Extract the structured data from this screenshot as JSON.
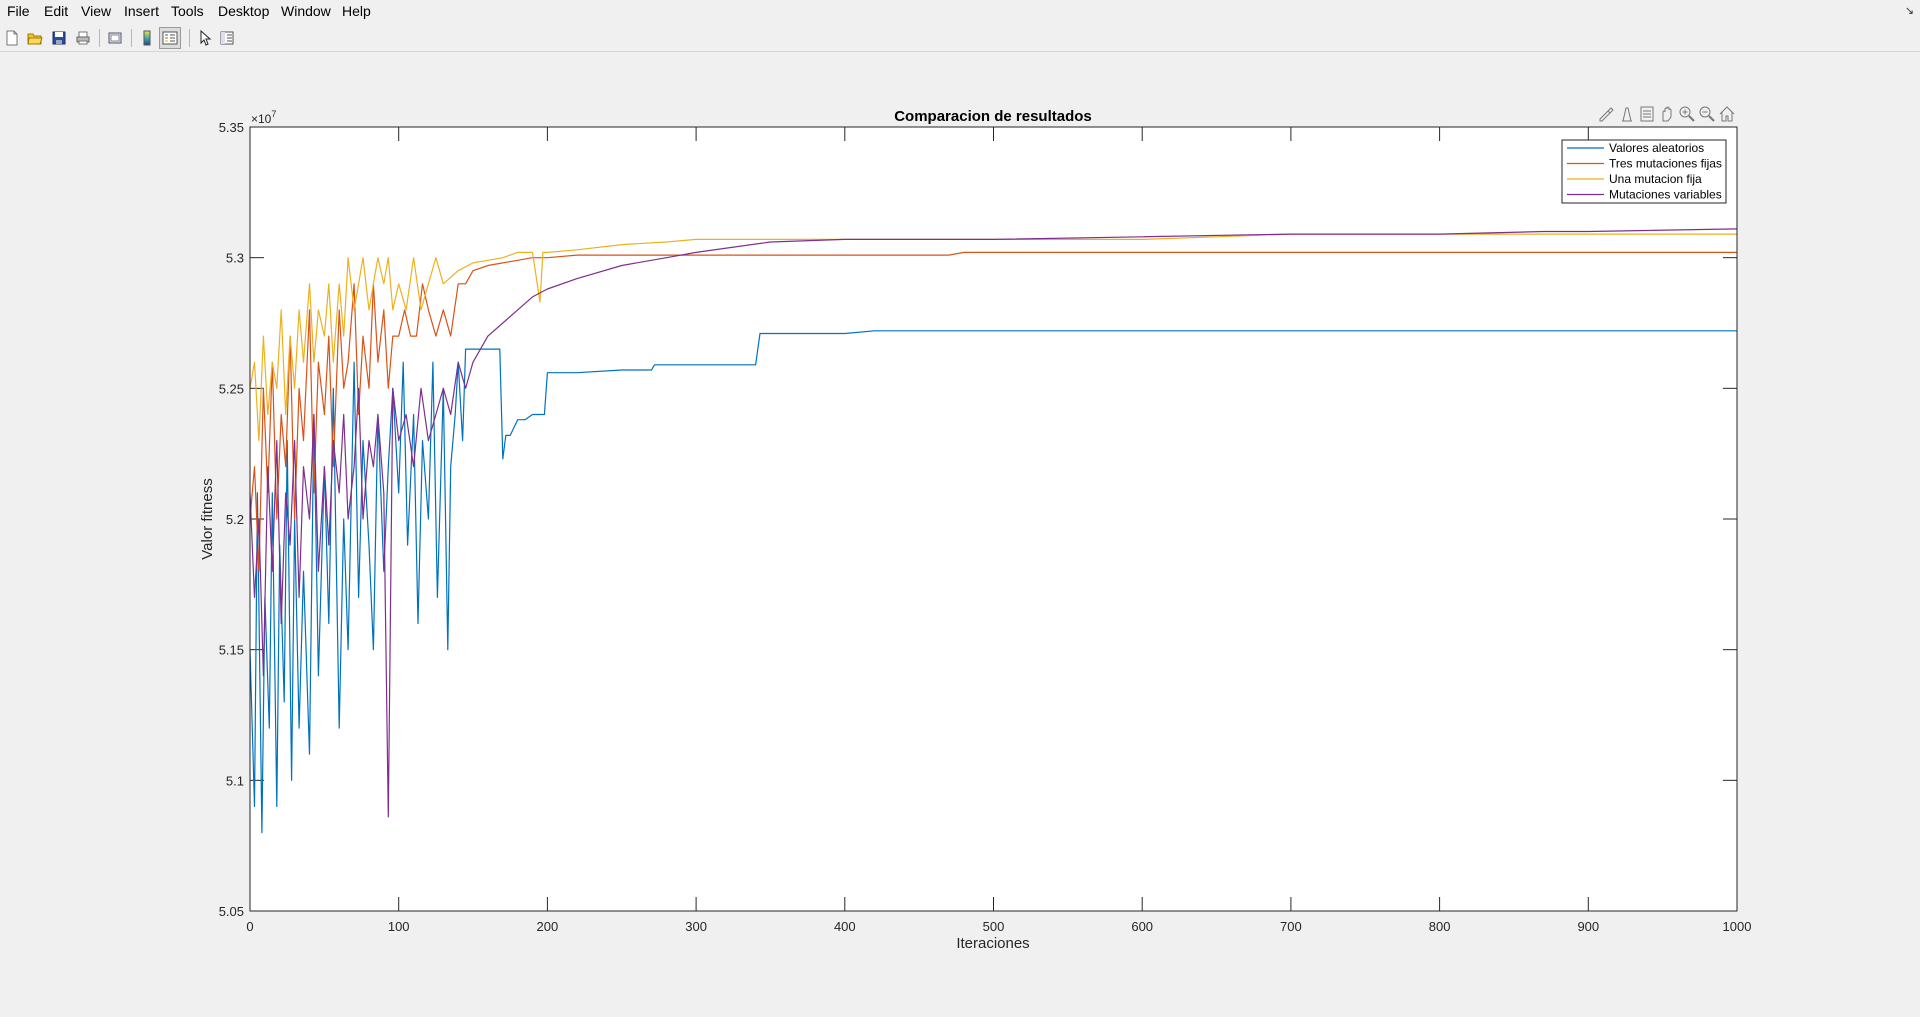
{
  "menu": [
    "File",
    "Edit",
    "View",
    "Insert",
    "Tools",
    "Desktop",
    "Window",
    "Help"
  ],
  "toolbar_icons": [
    "new-file-icon",
    "open-folder-icon",
    "save-icon",
    "print-icon",
    "print-preview-icon",
    "colorbar-icon",
    "legend-toggle-icon",
    "pointer-icon",
    "property-inspector-icon"
  ],
  "axes_toolbar_icons": [
    "brush-icon",
    "data-tips-icon",
    "export-icon",
    "pan-icon",
    "zoom-in-icon",
    "zoom-out-icon",
    "home-icon"
  ],
  "chart_data": {
    "type": "line",
    "title": "Comparacion de resultados",
    "xlabel": "Iteraciones",
    "ylabel": "Valor fitness",
    "y_exponent": "×10",
    "y_exponent_power": "7",
    "xlim": [
      0,
      1000
    ],
    "ylim": [
      5.05,
      5.35
    ],
    "xticks": [
      0,
      100,
      200,
      300,
      400,
      500,
      600,
      700,
      800,
      900,
      1000
    ],
    "yticks": [
      5.05,
      5.1,
      5.15,
      5.2,
      5.25,
      5.3,
      5.35
    ],
    "yticklabels": [
      "5.05",
      "5.1",
      "5.15",
      "5.2",
      "5.25",
      "5.3",
      "5.35"
    ],
    "grid": false,
    "legend_position": "top-right",
    "series": [
      {
        "name": "Valores aleatorios",
        "color": "#0072BD",
        "x": [
          0,
          3,
          5,
          8,
          10,
          13,
          15,
          18,
          20,
          23,
          25,
          28,
          30,
          33,
          36,
          40,
          43,
          46,
          50,
          53,
          56,
          60,
          63,
          66,
          70,
          73,
          76,
          80,
          83,
          86,
          90,
          93,
          96,
          100,
          103,
          106,
          110,
          113,
          116,
          120,
          123,
          126,
          130,
          133,
          135,
          138,
          140,
          143,
          145,
          150,
          160,
          168,
          170,
          172,
          175,
          180,
          185,
          190,
          198,
          200,
          203,
          220,
          250,
          270,
          272,
          300,
          340,
          343,
          400,
          420,
          450,
          500,
          600,
          700,
          800,
          900,
          1000
        ],
        "y": [
          5.15,
          5.09,
          5.21,
          5.08,
          5.17,
          5.12,
          5.21,
          5.09,
          5.19,
          5.13,
          5.23,
          5.1,
          5.2,
          5.12,
          5.18,
          5.11,
          5.24,
          5.14,
          5.22,
          5.16,
          5.25,
          5.12,
          5.2,
          5.15,
          5.26,
          5.17,
          5.23,
          5.19,
          5.15,
          5.24,
          5.18,
          5.22,
          5.25,
          5.21,
          5.26,
          5.19,
          5.24,
          5.16,
          5.23,
          5.2,
          5.26,
          5.17,
          5.25,
          5.15,
          5.22,
          5.24,
          5.26,
          5.23,
          5.265,
          5.265,
          5.265,
          5.265,
          5.223,
          5.232,
          5.232,
          5.238,
          5.238,
          5.24,
          5.24,
          5.256,
          5.256,
          5.256,
          5.257,
          5.257,
          5.259,
          5.259,
          5.259,
          5.271,
          5.271,
          5.272,
          5.272,
          5.272,
          5.272,
          5.272,
          5.272,
          5.272,
          5.272
        ]
      },
      {
        "name": "Tres mutaciones fijas",
        "color": "#D95319",
        "x": [
          0,
          3,
          6,
          9,
          12,
          15,
          18,
          21,
          24,
          27,
          30,
          33,
          36,
          40,
          43,
          46,
          50,
          53,
          56,
          60,
          63,
          66,
          70,
          73,
          76,
          80,
          83,
          86,
          90,
          93,
          96,
          100,
          104,
          108,
          112,
          116,
          120,
          125,
          130,
          135,
          140,
          145,
          150,
          160,
          170,
          180,
          190,
          200,
          220,
          250,
          300,
          400,
          470,
          480,
          600,
          700,
          800,
          900,
          1000
        ],
        "y": [
          5.2,
          5.22,
          5.18,
          5.25,
          5.21,
          5.26,
          5.2,
          5.24,
          5.22,
          5.27,
          5.2,
          5.25,
          5.23,
          5.28,
          5.21,
          5.26,
          5.24,
          5.27,
          5.22,
          5.28,
          5.25,
          5.26,
          5.29,
          5.24,
          5.27,
          5.25,
          5.29,
          5.26,
          5.28,
          5.25,
          5.27,
          5.27,
          5.28,
          5.27,
          5.27,
          5.29,
          5.28,
          5.27,
          5.28,
          5.27,
          5.29,
          5.29,
          5.295,
          5.297,
          5.298,
          5.299,
          5.3,
          5.3,
          5.301,
          5.301,
          5.301,
          5.301,
          5.301,
          5.302,
          5.302,
          5.302,
          5.302,
          5.302,
          5.302
        ]
      },
      {
        "name": "Una mutacion fija",
        "color": "#EDB120",
        "x": [
          0,
          3,
          6,
          9,
          12,
          15,
          18,
          21,
          24,
          27,
          30,
          33,
          36,
          40,
          43,
          46,
          50,
          53,
          56,
          60,
          63,
          66,
          70,
          73,
          76,
          80,
          83,
          86,
          90,
          93,
          96,
          100,
          105,
          110,
          115,
          120,
          125,
          130,
          140,
          150,
          160,
          170,
          180,
          190,
          195,
          197,
          200,
          220,
          250,
          280,
          300,
          350,
          400,
          500,
          600,
          650,
          700,
          800,
          900,
          1000
        ],
        "y": [
          5.25,
          5.26,
          5.23,
          5.27,
          5.24,
          5.26,
          5.25,
          5.28,
          5.24,
          5.27,
          5.25,
          5.28,
          5.26,
          5.29,
          5.26,
          5.28,
          5.27,
          5.29,
          5.26,
          5.29,
          5.27,
          5.3,
          5.28,
          5.29,
          5.3,
          5.28,
          5.29,
          5.3,
          5.29,
          5.3,
          5.28,
          5.29,
          5.28,
          5.3,
          5.28,
          5.29,
          5.3,
          5.29,
          5.295,
          5.298,
          5.299,
          5.3,
          5.302,
          5.302,
          5.283,
          5.302,
          5.302,
          5.303,
          5.305,
          5.306,
          5.307,
          5.307,
          5.307,
          5.307,
          5.307,
          5.308,
          5.309,
          5.309,
          5.309,
          5.309
        ]
      },
      {
        "name": "Mutaciones variables",
        "color": "#7E2F8E",
        "x": [
          0,
          3,
          6,
          9,
          12,
          15,
          18,
          21,
          24,
          27,
          30,
          33,
          36,
          40,
          43,
          46,
          50,
          53,
          56,
          60,
          63,
          66,
          70,
          73,
          76,
          80,
          83,
          86,
          90,
          93,
          96,
          100,
          105,
          110,
          115,
          120,
          125,
          130,
          135,
          140,
          145,
          150,
          160,
          170,
          180,
          190,
          200,
          220,
          250,
          280,
          300,
          350,
          400,
          500,
          600,
          700,
          800,
          870,
          900,
          1000
        ],
        "y": [
          5.21,
          5.17,
          5.2,
          5.14,
          5.22,
          5.18,
          5.23,
          5.16,
          5.21,
          5.19,
          5.23,
          5.17,
          5.22,
          5.2,
          5.24,
          5.18,
          5.22,
          5.19,
          5.23,
          5.21,
          5.24,
          5.2,
          5.22,
          5.25,
          5.2,
          5.23,
          5.22,
          5.24,
          5.21,
          5.086,
          5.25,
          5.23,
          5.24,
          5.22,
          5.25,
          5.23,
          5.24,
          5.25,
          5.24,
          5.26,
          5.25,
          5.26,
          5.27,
          5.275,
          5.28,
          5.285,
          5.288,
          5.292,
          5.297,
          5.3,
          5.302,
          5.306,
          5.307,
          5.307,
          5.308,
          5.309,
          5.309,
          5.31,
          5.31,
          5.311
        ]
      }
    ]
  }
}
